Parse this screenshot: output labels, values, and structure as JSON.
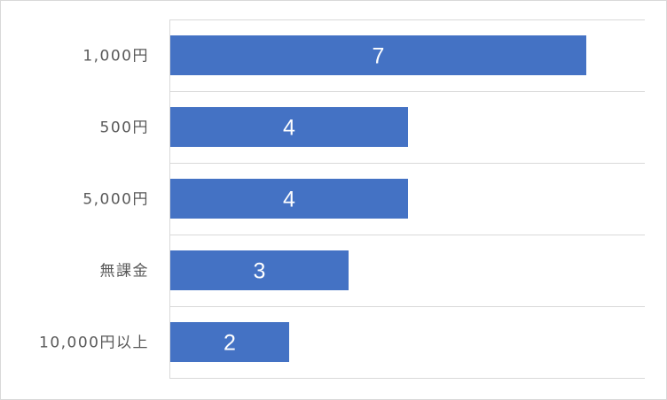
{
  "chart_data": {
    "type": "bar",
    "orientation": "horizontal",
    "categories": [
      "1,000円",
      "500円",
      "5,000円",
      "無課金",
      "10,000円以上"
    ],
    "values": [
      7,
      4,
      4,
      3,
      2
    ],
    "xlim": [
      0,
      8
    ],
    "bar_color": "#4472c4",
    "gridlines": true,
    "data_labels": true,
    "title": "",
    "xlabel": "",
    "ylabel": ""
  }
}
